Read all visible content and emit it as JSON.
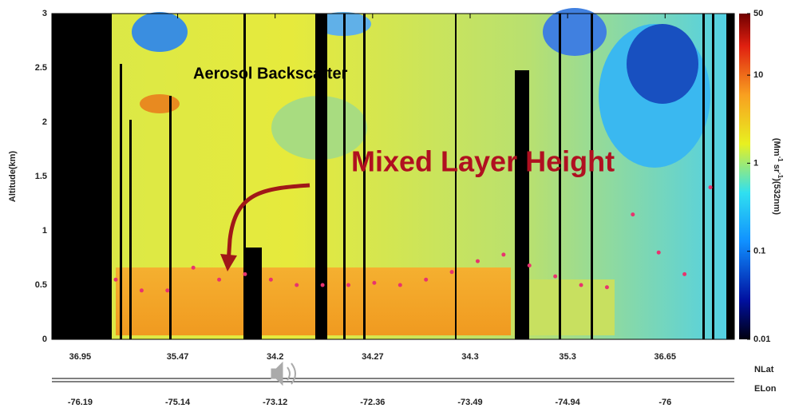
{
  "chart_data": {
    "type": "heatmap",
    "ylabel": "Altitude(km)",
    "ylim": [
      0,
      3
    ],
    "yticks": [
      0,
      0.5,
      1,
      1.5,
      2,
      2.5,
      3
    ],
    "x_categories": [
      "36.95",
      "35.47",
      "34.2",
      "34.27",
      "34.3",
      "35.3",
      "36.65"
    ],
    "x2_categories": [
      "-76.19",
      "-75.14",
      "-73.12",
      "-72.36",
      "-73.49",
      "-74.94",
      "-76"
    ],
    "x_label": "NLat",
    "x2_label": "ELon",
    "colorbar": {
      "scale": "log",
      "lim": [
        0.01,
        50
      ],
      "ticks": [
        0.01,
        0.1,
        1,
        10,
        50
      ],
      "label_parts": [
        "(Mm",
        "-1",
        " sr",
        "-1",
        ")(532nm)"
      ]
    },
    "annotations": [
      "Aerosol Backscatter",
      "Mixed Layer Height"
    ],
    "mixed_layer_height": {
      "color": "#e8336e",
      "values": [
        0.55,
        0.45,
        0.45,
        0.66,
        0.55,
        0.6,
        0.55,
        0.5,
        0.5,
        0.5,
        0.52,
        0.5,
        0.55,
        0.62,
        0.72,
        0.78,
        0.68,
        0.58,
        0.5,
        0.48,
        1.15,
        0.8,
        0.6,
        1.4
      ]
    }
  }
}
